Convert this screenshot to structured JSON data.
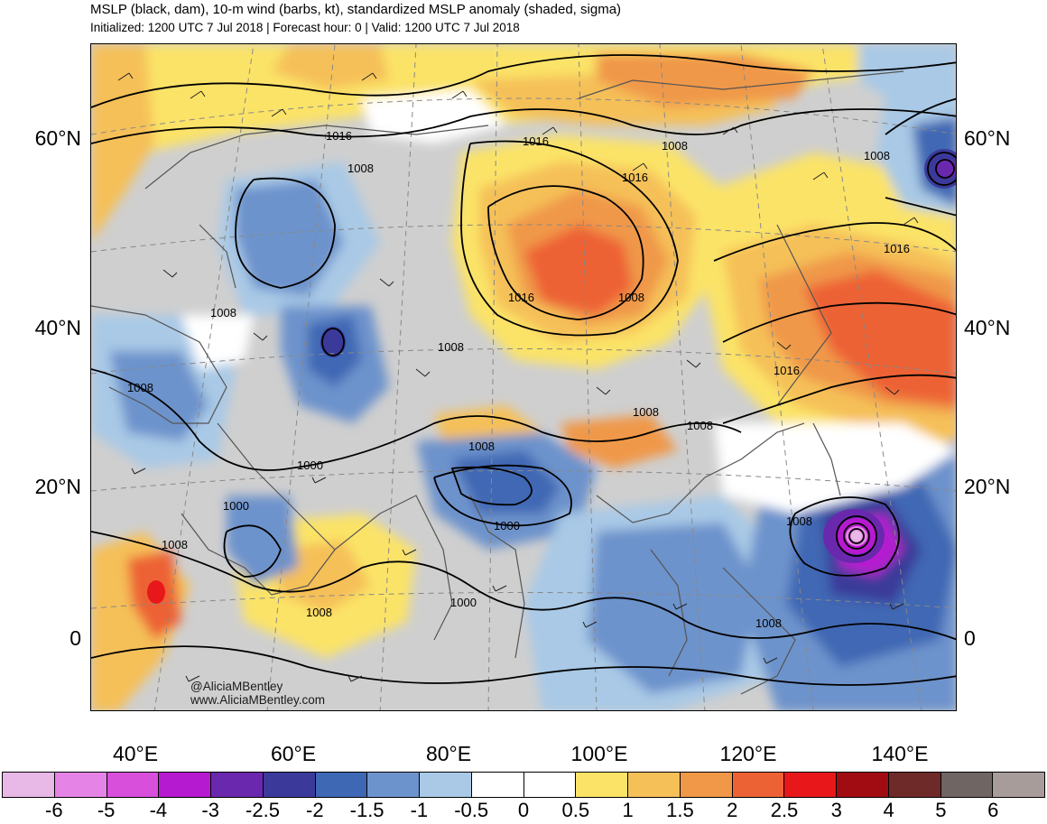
{
  "header": {
    "title": "MSLP (black, dam), 10-m wind (barbs, kt), standardized MSLP anomaly (shaded, sigma)",
    "subtitle": "Initialized: 1200 UTC 7 Jul 2018 | Forecast hour: 0 | Valid: 1200 UTC 7 Jul 2018"
  },
  "map": {
    "lat_labels": [
      "60°N",
      "40°N",
      "20°N",
      "0"
    ],
    "lon_labels": [
      "40°E",
      "60°E",
      "80°E",
      "100°E",
      "120°E",
      "140°E"
    ],
    "isobar_labels": [
      "1016",
      "1008",
      "1016",
      "1008",
      "1016",
      "1016",
      "1008",
      "1008",
      "1016",
      "1008",
      "1016",
      "1008",
      "1008",
      "1008",
      "1000",
      "1008",
      "1000",
      "1000",
      "1008",
      "1000",
      "1008",
      "1008",
      "1008",
      "1008"
    ],
    "credits": [
      "@AliciaMBentley",
      "www.AliciaMBentley.com"
    ]
  },
  "colorbar": {
    "ticks": [
      "-6",
      "-5",
      "-4",
      "-3",
      "-2.5",
      "-2",
      "-1.5",
      "-1",
      "-0.5",
      "0",
      "0.5",
      "1",
      "1.5",
      "2",
      "2.5",
      "3",
      "4",
      "5",
      "6"
    ],
    "colors": [
      "#e8b8e6",
      "#e683e6",
      "#d84fdc",
      "#b61ad0",
      "#6a28ae",
      "#3b3a9a",
      "#3f68b4",
      "#6d93cc",
      "#a9c9e6",
      "#ffffff",
      "#ffffff",
      "#fbe368",
      "#f5c058",
      "#f09848",
      "#ed6235",
      "#e8181a",
      "#a10b12",
      "#6e2a28",
      "#6f6563",
      "#a89c9b"
    ]
  }
}
